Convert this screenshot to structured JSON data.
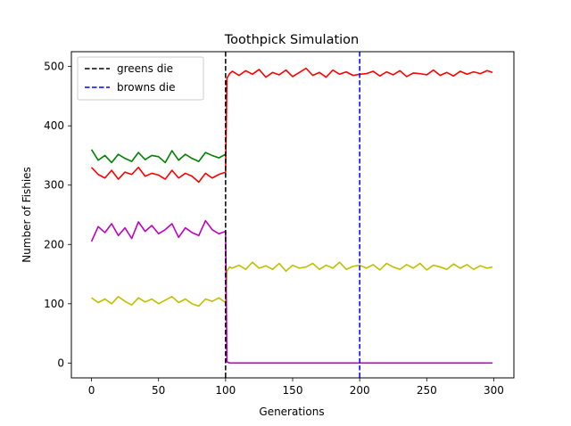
{
  "chart_data": {
    "type": "line",
    "title": "Toothpick Simulation",
    "xlabel": "Generations",
    "ylabel": "Number of Fishies",
    "xlim": [
      -15,
      315
    ],
    "ylim": [
      -25,
      525
    ],
    "xticks": [
      0,
      50,
      100,
      150,
      200,
      250,
      300
    ],
    "yticks": [
      0,
      100,
      200,
      300,
      400,
      500
    ],
    "grid": false,
    "legend_position": "top-left",
    "vlines": [
      {
        "name": "greens die",
        "x": 100,
        "color": "#000000",
        "dashed": true
      },
      {
        "name": "browns die",
        "x": 200,
        "color": "#0000ff",
        "dashed": true
      }
    ],
    "series": [
      {
        "color": "#008000",
        "x": [
          0,
          5,
          10,
          15,
          20,
          25,
          30,
          35,
          40,
          45,
          50,
          55,
          60,
          65,
          70,
          75,
          80,
          85,
          90,
          95,
          100
        ],
        "y": [
          360,
          342,
          350,
          338,
          352,
          345,
          340,
          355,
          343,
          350,
          348,
          338,
          358,
          342,
          352,
          345,
          340,
          355,
          350,
          346,
          352
        ]
      },
      {
        "color": "#ff0000",
        "x": [
          0,
          5,
          10,
          15,
          20,
          25,
          30,
          35,
          40,
          45,
          50,
          55,
          60,
          65,
          70,
          75,
          80,
          85,
          90,
          95,
          100,
          101,
          103,
          105,
          110,
          115,
          120,
          125,
          130,
          135,
          140,
          145,
          150,
          155,
          160,
          165,
          170,
          175,
          180,
          185,
          190,
          195,
          200,
          205,
          210,
          215,
          220,
          225,
          230,
          235,
          240,
          245,
          250,
          255,
          260,
          265,
          270,
          275,
          280,
          285,
          290,
          295,
          299
        ],
        "y": [
          330,
          318,
          312,
          325,
          310,
          322,
          318,
          330,
          315,
          320,
          317,
          310,
          325,
          312,
          320,
          315,
          305,
          320,
          312,
          318,
          322,
          480,
          488,
          492,
          485,
          493,
          487,
          495,
          482,
          490,
          486,
          494,
          483,
          490,
          497,
          485,
          490,
          482,
          494,
          487,
          491,
          485,
          487,
          488,
          492,
          484,
          491,
          486,
          493,
          483,
          489,
          488,
          486,
          494,
          485,
          490,
          484,
          492,
          487,
          491,
          488,
          493,
          490
        ]
      },
      {
        "color": "#bfbf00",
        "x": [
          0,
          5,
          10,
          15,
          20,
          25,
          30,
          35,
          40,
          45,
          50,
          55,
          60,
          65,
          70,
          75,
          80,
          85,
          90,
          95,
          100,
          101,
          103,
          105,
          110,
          115,
          120,
          125,
          130,
          135,
          140,
          145,
          150,
          155,
          160,
          165,
          170,
          175,
          180,
          185,
          190,
          195,
          200,
          205,
          210,
          215,
          220,
          225,
          230,
          235,
          240,
          245,
          250,
          255,
          260,
          265,
          270,
          275,
          280,
          285,
          290,
          295,
          299
        ],
        "y": [
          110,
          102,
          108,
          100,
          112,
          104,
          98,
          110,
          103,
          108,
          100,
          106,
          112,
          102,
          108,
          100,
          96,
          108,
          104,
          110,
          102,
          155,
          162,
          160,
          165,
          158,
          170,
          160,
          164,
          158,
          168,
          155,
          165,
          160,
          162,
          168,
          158,
          165,
          160,
          170,
          158,
          163,
          165,
          160,
          166,
          157,
          168,
          162,
          158,
          166,
          160,
          168,
          157,
          165,
          162,
          158,
          167,
          160,
          166,
          158,
          164,
          160,
          162
        ]
      },
      {
        "color": "#bf00bf",
        "x": [
          0,
          5,
          10,
          15,
          20,
          25,
          30,
          35,
          40,
          45,
          50,
          55,
          60,
          65,
          70,
          75,
          80,
          85,
          90,
          95,
          100,
          101,
          103,
          105,
          110,
          115,
          120,
          125,
          130,
          135,
          140,
          145,
          150,
          155,
          160,
          165,
          170,
          175,
          180,
          185,
          190,
          195,
          200,
          205,
          210,
          215,
          220,
          225,
          230,
          235,
          240,
          245,
          250,
          255,
          260,
          265,
          270,
          275,
          280,
          285,
          290,
          295,
          299
        ],
        "y": [
          205,
          230,
          220,
          235,
          215,
          228,
          210,
          238,
          222,
          232,
          218,
          225,
          235,
          212,
          228,
          220,
          215,
          240,
          225,
          218,
          222,
          2,
          0,
          0,
          0,
          0,
          0,
          0,
          0,
          0,
          0,
          0,
          0,
          0,
          0,
          0,
          0,
          0,
          0,
          0,
          0,
          0,
          0,
          0,
          0,
          0,
          0,
          0,
          0,
          0,
          0,
          0,
          0,
          0,
          0,
          0,
          0,
          0,
          0,
          0,
          0,
          0,
          0
        ]
      }
    ]
  }
}
